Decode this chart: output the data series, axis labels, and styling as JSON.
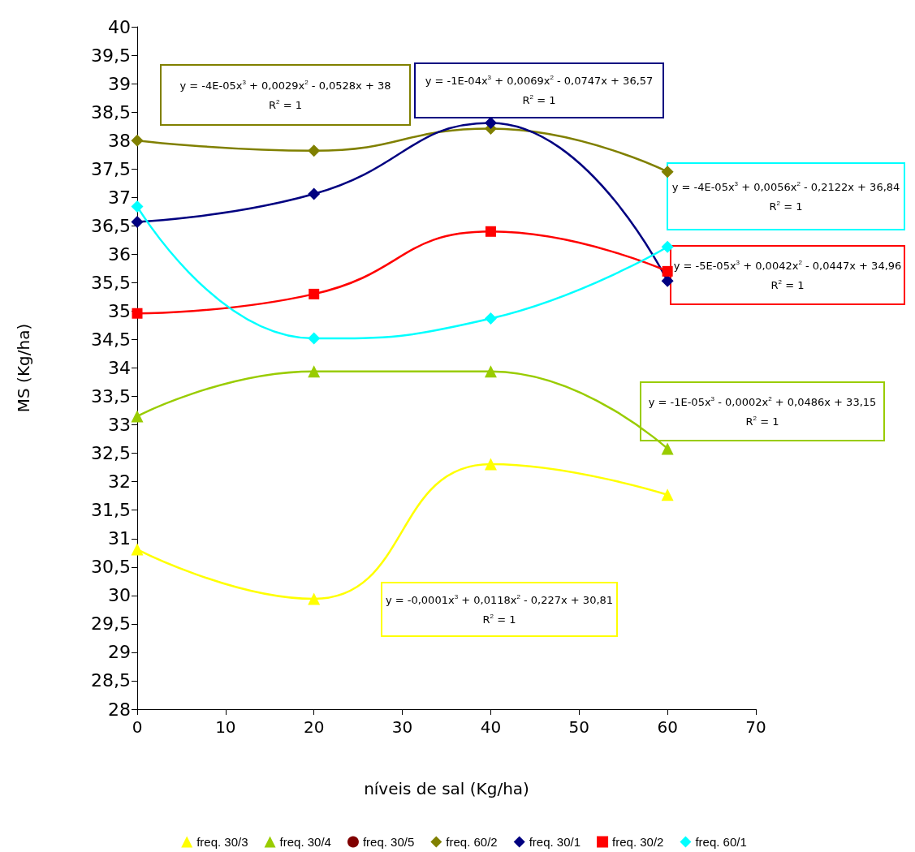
{
  "chart_data": {
    "type": "line",
    "xlabel": "níveis de sal (Kg/ha)",
    "ylabel": "MS (Kg/ha)",
    "x": [
      0,
      20,
      40,
      60
    ],
    "series": [
      {
        "name": "freq. 30/3",
        "color": "#ffff00",
        "marker": "triangle",
        "values": [
          30.81,
          29.94,
          32.31,
          31.77
        ]
      },
      {
        "name": "freq. 30/4",
        "color": "#99cc00",
        "marker": "triangle",
        "values": [
          33.15,
          33.94,
          33.94,
          32.58
        ]
      },
      {
        "name": "freq. 30/5",
        "color": "#800000",
        "marker": "circle",
        "values": [
          null,
          null,
          null,
          null
        ]
      },
      {
        "name": "freq. 60/2",
        "color": "#808000",
        "marker": "diamond",
        "values": [
          38,
          37.82,
          38.21,
          37.45
        ]
      },
      {
        "name": "freq. 30/1",
        "color": "#000080",
        "marker": "diamond",
        "values": [
          36.57,
          37.06,
          38.31,
          35.53
        ]
      },
      {
        "name": "freq. 30/2",
        "color": "#ff0000",
        "marker": "square",
        "values": [
          34.96,
          35.3,
          36.4,
          35.7
        ]
      },
      {
        "name": "freq. 60/1",
        "color": "#00ffff",
        "marker": "diamond",
        "values": [
          36.84,
          34.52,
          34.87,
          36.13
        ]
      }
    ],
    "xlim": [
      0,
      70
    ],
    "xticks": [
      0,
      10,
      20,
      30,
      40,
      50,
      60,
      70
    ],
    "ylim": [
      28,
      40
    ],
    "yticks": [
      28,
      {
        "value": 28.5,
        "label": "28,5"
      },
      29,
      {
        "value": 29.5,
        "label": "29,5"
      },
      30,
      {
        "value": 30.5,
        "label": "30,5"
      },
      31,
      {
        "value": 31.5,
        "label": "31,5"
      },
      32,
      {
        "value": 32.5,
        "label": "32,5"
      },
      33,
      {
        "value": 33.5,
        "label": "33,5"
      },
      34,
      {
        "value": 34.5,
        "label": "34,5"
      },
      35,
      {
        "value": 35.5,
        "label": "35,5"
      },
      36,
      {
        "value": 36.5,
        "label": "36,5"
      },
      37,
      {
        "value": 37.5,
        "label": "37,5"
      },
      38,
      {
        "value": 38.5,
        "label": "38,5"
      },
      39,
      {
        "value": 39.5,
        "label": "39,5"
      },
      40
    ],
    "annotations": [
      "y = -0,0001x$^{3}$ + 0,0118x$^{2}$ - 0,227x + 30,81\nR$^{2}$ = 1",
      "y = -1E-05x$^{3}$ - 0,0002x$^{2}$ + 0,0486x + 33,15\nR$^{2}$ = 1",
      "y = -4E-05x$^{3}$ + 0,0029x$^{2}$ - 0,0528x + 38\nR$^{2}$ = 1",
      "y = -1E-04x$^{3}$ + 0,0069x$^{2}$ - 0,0747x + 36,57\nR$^{2}$ = 1",
      "y = -5E-05x$^{3}$ + 0,0042x$^{2}$ - 0,0447x + 34,96\nR$^{2}$ = 1",
      "y = -4E-05x$^{3}$ + 0,0056x$^{2}$ - 0,2122x + 36,84\nR$^{2}$ = 1"
    ],
    "grid": false,
    "legend": "bottom",
    "line_style": "solid"
  }
}
